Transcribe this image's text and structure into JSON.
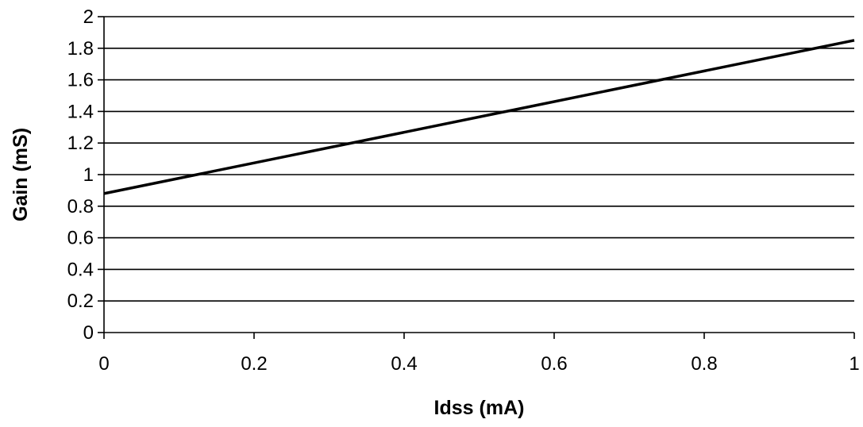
{
  "chart_data": {
    "type": "line",
    "title": "",
    "xlabel": "Idss (mA)",
    "ylabel": "Gain (mS)",
    "xlim": [
      0,
      1
    ],
    "ylim": [
      0,
      2
    ],
    "x_ticks": [
      "0",
      "0.2",
      "0.4",
      "0.6",
      "0.8",
      "1"
    ],
    "y_ticks": [
      "0",
      "0.2",
      "0.4",
      "0.6",
      "0.8",
      "1",
      "1.2",
      "1.4",
      "1.6",
      "1.8",
      "2"
    ],
    "grid": "horizontal",
    "legend": "none",
    "series": [
      {
        "color": "#000000",
        "x": [
          0,
          1
        ],
        "y": [
          0.88,
          1.85
        ]
      }
    ]
  }
}
